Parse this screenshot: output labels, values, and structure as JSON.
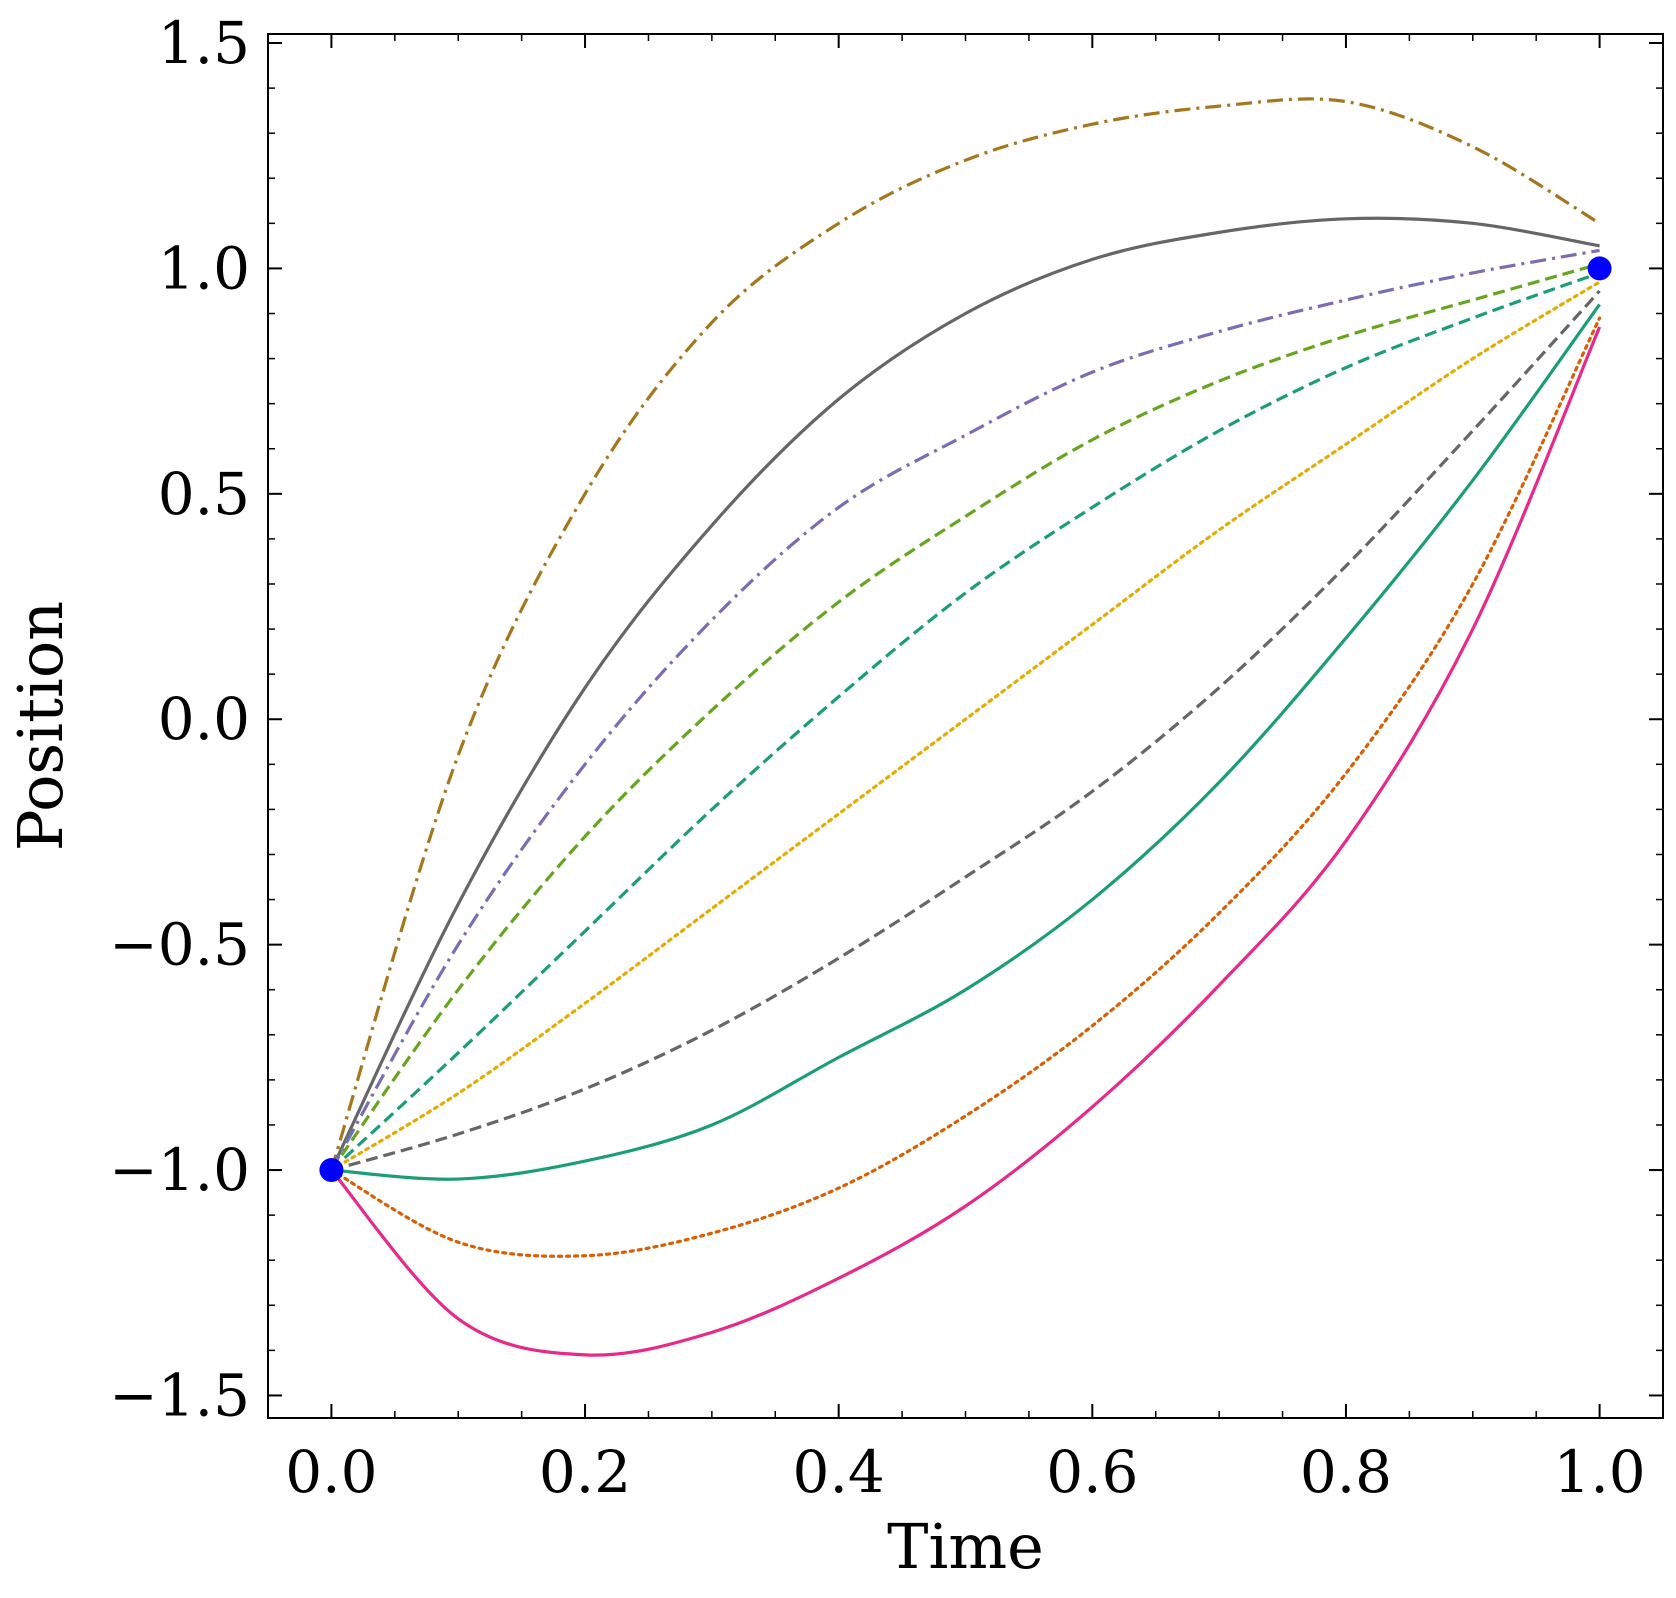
{
  "chart_data": {
    "type": "line",
    "xlabel": "Time",
    "ylabel": "Position",
    "xlim": [
      -0.05,
      1.05
    ],
    "ylim": [
      -1.55,
      1.52
    ],
    "x_ticks": [
      0.0,
      0.2,
      0.4,
      0.6,
      0.8,
      1.0
    ],
    "x_tick_labels": [
      "0.0",
      "0.2",
      "0.4",
      "0.6",
      "0.8",
      "1.0"
    ],
    "y_ticks": [
      -1.5,
      -1.0,
      -0.5,
      0.0,
      0.5,
      1.0,
      1.5
    ],
    "y_tick_labels": [
      "−1.5",
      "−1.0",
      "−0.5",
      "0.0",
      "0.5",
      "1.0",
      "1.5"
    ],
    "grid": false,
    "endpoints": {
      "color": "#0000ff",
      "points": [
        {
          "x": 0.0,
          "y": -1.0
        },
        {
          "x": 1.0,
          "y": 1.0
        }
      ]
    },
    "series": [
      {
        "color": "#a6761d",
        "dash": "dashdot",
        "x": [
          0.0,
          0.1,
          0.2,
          0.3,
          0.4,
          0.5,
          0.6,
          0.7,
          0.8,
          0.9,
          1.0
        ],
        "y": [
          -1.0,
          -0.08,
          0.5,
          0.88,
          1.1,
          1.24,
          1.32,
          1.36,
          1.37,
          1.27,
          1.1
        ]
      },
      {
        "color": "#666666",
        "dash": "solid",
        "x": [
          0.0,
          0.1,
          0.2,
          0.3,
          0.4,
          0.5,
          0.6,
          0.7,
          0.8,
          0.9,
          1.0
        ],
        "y": [
          -1.0,
          -0.41,
          0.07,
          0.43,
          0.71,
          0.9,
          1.02,
          1.08,
          1.11,
          1.1,
          1.05
        ]
      },
      {
        "color": "#7570b3",
        "dash": "dashdot",
        "x": [
          0.0,
          0.1,
          0.2,
          0.3,
          0.4,
          0.5,
          0.6,
          0.7,
          0.8,
          0.9,
          1.0
        ],
        "y": [
          -1.0,
          -0.5,
          -0.1,
          0.22,
          0.47,
          0.63,
          0.77,
          0.86,
          0.93,
          0.99,
          1.04
        ]
      },
      {
        "color": "#66a61e",
        "dash": "dashed",
        "x": [
          0.0,
          0.1,
          0.2,
          0.3,
          0.4,
          0.5,
          0.6,
          0.7,
          0.8,
          0.9,
          1.0
        ],
        "y": [
          -1.0,
          -0.6,
          -0.26,
          0.02,
          0.26,
          0.45,
          0.62,
          0.75,
          0.85,
          0.93,
          1.01
        ]
      },
      {
        "color": "#1b9e77",
        "dash": "dashed",
        "x": [
          0.0,
          0.1,
          0.2,
          0.3,
          0.4,
          0.5,
          0.6,
          0.7,
          0.8,
          0.9,
          1.0
        ],
        "y": [
          -1.0,
          -0.74,
          -0.47,
          -0.2,
          0.05,
          0.28,
          0.47,
          0.64,
          0.78,
          0.89,
          0.99
        ]
      },
      {
        "color": "#e6ab02",
        "dash": "dotted",
        "x": [
          0.0,
          0.1,
          0.2,
          0.3,
          0.4,
          0.5,
          0.6,
          0.7,
          0.8,
          0.9,
          1.0
        ],
        "y": [
          -1.0,
          -0.83,
          -0.63,
          -0.42,
          -0.21,
          0.0,
          0.21,
          0.42,
          0.61,
          0.8,
          0.97
        ]
      },
      {
        "color": "#666666",
        "dash": "dashed",
        "x": [
          0.0,
          0.1,
          0.2,
          0.3,
          0.4,
          0.5,
          0.6,
          0.7,
          0.8,
          0.9,
          1.0
        ],
        "y": [
          -1.0,
          -0.92,
          -0.82,
          -0.69,
          -0.53,
          -0.35,
          -0.16,
          0.07,
          0.34,
          0.64,
          0.95
        ]
      },
      {
        "color": "#1b9e77",
        "dash": "solid",
        "x": [
          0.0,
          0.1,
          0.2,
          0.3,
          0.4,
          0.5,
          0.6,
          0.7,
          0.8,
          0.9,
          1.0
        ],
        "y": [
          -1.0,
          -1.02,
          -0.98,
          -0.9,
          -0.75,
          -0.6,
          -0.4,
          -0.14,
          0.18,
          0.53,
          0.92
        ]
      },
      {
        "color": "#d95f02",
        "dash": "dotted",
        "x": [
          0.0,
          0.1,
          0.2,
          0.3,
          0.4,
          0.5,
          0.6,
          0.7,
          0.8,
          0.9,
          1.0
        ],
        "y": [
          -1.0,
          -1.16,
          -1.19,
          -1.14,
          -1.04,
          -0.88,
          -0.68,
          -0.43,
          -0.12,
          0.3,
          0.89
        ]
      },
      {
        "color": "#e7298a",
        "dash": "solid",
        "x": [
          0.0,
          0.1,
          0.2,
          0.3,
          0.4,
          0.5,
          0.6,
          0.7,
          0.8,
          0.9,
          1.0
        ],
        "y": [
          -1.0,
          -1.33,
          -1.41,
          -1.36,
          -1.24,
          -1.08,
          -0.86,
          -0.59,
          -0.27,
          0.2,
          0.87
        ]
      }
    ]
  }
}
